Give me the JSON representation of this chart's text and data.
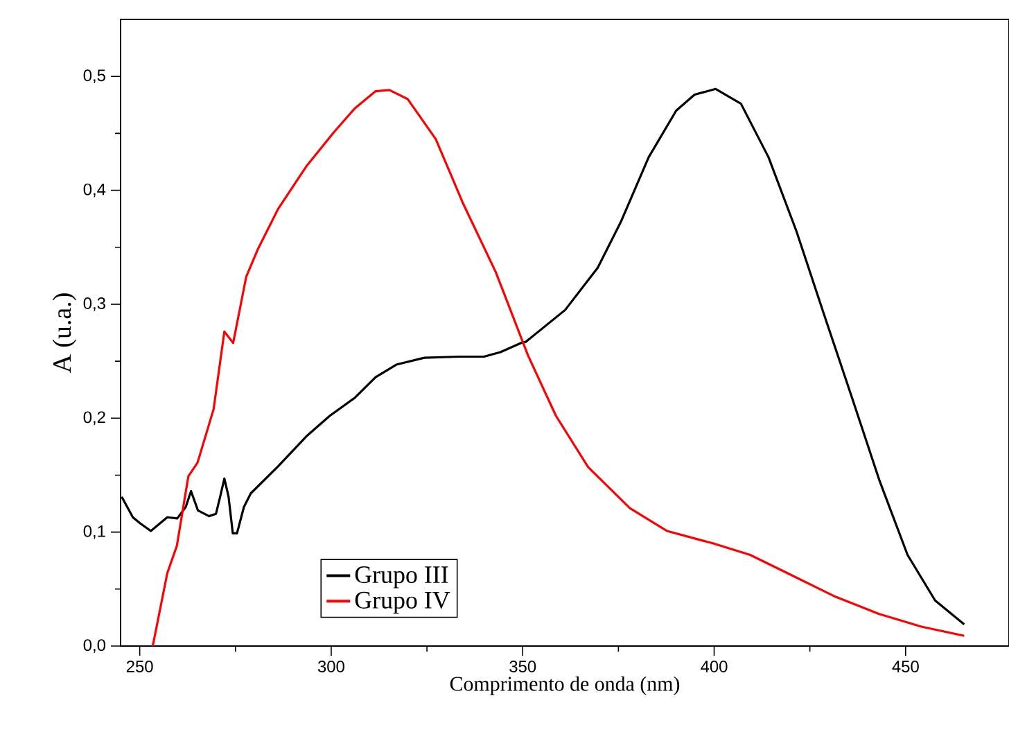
{
  "chart_data": {
    "type": "line",
    "xlabel": "Comprimento de onda (nm)",
    "ylabel": "A (u.a.)",
    "xlim": [
      245,
      477
    ],
    "ylim": [
      0,
      0.55
    ],
    "xticks": [
      250,
      300,
      350,
      400,
      450
    ],
    "yticks": [
      {
        "value": 0,
        "label": "0,0"
      },
      {
        "value": 0.1,
        "label": "0,1"
      },
      {
        "value": 0.2,
        "label": "0,2"
      },
      {
        "value": 0.3,
        "label": "0,3"
      },
      {
        "value": 0.4,
        "label": "0,4"
      },
      {
        "value": 0.5,
        "label": "0,5"
      }
    ],
    "grid": false,
    "legend": "bottom left",
    "line_style": "solid",
    "marker": "none",
    "series": [
      {
        "name": "Grupo III",
        "color": "#000000",
        "x": [
          245.3,
          248.2,
          250,
          252.9,
          255.4,
          257.2,
          259.8,
          262,
          263.4,
          265.2,
          268.1,
          269.9,
          271,
          272.1,
          273.2,
          274.3,
          275.4,
          277.2,
          279,
          286.2,
          293.5,
          299.6,
          306.2,
          311.6,
          317,
          324.3,
          333.3,
          339.9,
          344.2,
          349.6,
          350.8,
          361.1,
          369.6,
          375.6,
          382.9,
          390.1,
          394.9,
          400.4,
          407,
          414.2,
          421.5,
          428.7,
          436,
          443.2,
          450.5,
          457.7,
          465.3
        ],
        "values": [
          0.131,
          0.113,
          0.108,
          0.101,
          0.108,
          0.113,
          0.112,
          0.122,
          0.136,
          0.119,
          0.114,
          0.116,
          0.131,
          0.147,
          0.131,
          0.099,
          0.099,
          0.122,
          0.134,
          0.158,
          0.184,
          0.202,
          0.218,
          0.236,
          0.247,
          0.253,
          0.254,
          0.254,
          0.258,
          0.266,
          0.267,
          0.295,
          0.332,
          0.372,
          0.429,
          0.47,
          0.484,
          0.489,
          0.476,
          0.429,
          0.364,
          0.291,
          0.218,
          0.145,
          0.08,
          0.04,
          0.019
        ]
      },
      {
        "name": "Grupo IV",
        "color": "#ff0000",
        "x": [
          253.4,
          257.2,
          259.7,
          262.7,
          265.1,
          269.3,
          272.1,
          274.4,
          277.8,
          280.8,
          286.2,
          293.5,
          300.7,
          306.2,
          311.6,
          315.2,
          320,
          327.3,
          334.5,
          343,
          351.4,
          358.7,
          367.1,
          378,
          387.7,
          399.8,
          409.4,
          419.1,
          431.2,
          443.2,
          454.1,
          465.3
        ],
        "values": [
          0.0,
          0.064,
          0.088,
          0.149,
          0.161,
          0.208,
          0.276,
          0.266,
          0.324,
          0.348,
          0.384,
          0.421,
          0.451,
          0.472,
          0.487,
          0.488,
          0.48,
          0.445,
          0.388,
          0.328,
          0.255,
          0.202,
          0.157,
          0.121,
          0.101,
          0.09,
          0.08,
          0.064,
          0.044,
          0.028,
          0.017,
          0.009
        ]
      }
    ]
  }
}
